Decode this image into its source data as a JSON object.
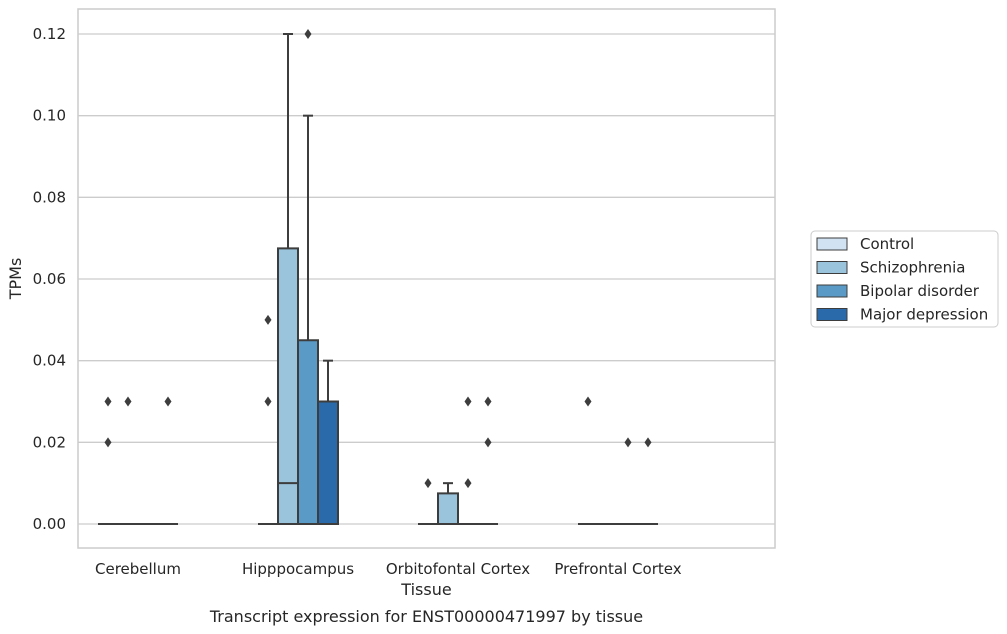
{
  "chart_data": {
    "type": "box",
    "xlabel": "Tissue",
    "ylabel": "TPMs",
    "caption": "Transcript expression for ENST00000471997 by tissue",
    "ylim": [
      -0.006,
      0.126
    ],
    "yticks": [
      0.0,
      0.02,
      0.04,
      0.06,
      0.08,
      0.1,
      0.12
    ],
    "ytick_labels": [
      "0.00",
      "0.02",
      "0.04",
      "0.06",
      "0.08",
      "0.10",
      "0.12"
    ],
    "grid": "horizontal",
    "legend_position": "right",
    "categories": [
      "Cerebellum",
      "Hipppocampus",
      "Orbitofontal Cortex",
      "Prefrontal Cortex"
    ],
    "series": [
      {
        "name": "Control",
        "color": "#d1e2f2",
        "boxes": [
          {
            "q1": 0,
            "median": 0,
            "q3": 0,
            "whislo": 0,
            "whishi": 0,
            "fliers": [
              0.02,
              0.03
            ]
          },
          {
            "q1": 0,
            "median": 0,
            "q3": 0,
            "whislo": 0,
            "whishi": 0,
            "fliers": [
              0.03,
              0.05
            ]
          },
          {
            "q1": 0,
            "median": 0,
            "q3": 0,
            "whislo": 0,
            "whishi": 0,
            "fliers": [
              0.01
            ]
          },
          {
            "q1": 0,
            "median": 0,
            "q3": 0,
            "whislo": 0,
            "whishi": 0,
            "fliers": [
              0.03
            ]
          }
        ]
      },
      {
        "name": "Schizophrenia",
        "color": "#9ac3dc",
        "boxes": [
          {
            "q1": 0,
            "median": 0,
            "q3": 0,
            "whislo": 0,
            "whishi": 0,
            "fliers": [
              0.03
            ]
          },
          {
            "q1": 0,
            "median": 0.01,
            "q3": 0.0675,
            "whislo": 0,
            "whishi": 0.12,
            "fliers": []
          },
          {
            "q1": 0,
            "median": 0,
            "q3": 0.0075,
            "whislo": 0,
            "whishi": 0.01,
            "fliers": []
          },
          {
            "q1": 0,
            "median": 0,
            "q3": 0,
            "whislo": 0,
            "whishi": 0,
            "fliers": []
          }
        ]
      },
      {
        "name": "Bipolar disorder",
        "color": "#5a9ac6",
        "boxes": [
          {
            "q1": 0,
            "median": 0,
            "q3": 0,
            "whislo": 0,
            "whishi": 0,
            "fliers": []
          },
          {
            "q1": 0,
            "median": 0,
            "q3": 0.045,
            "whislo": 0,
            "whishi": 0.1,
            "fliers": [
              0.12
            ]
          },
          {
            "q1": 0,
            "median": 0,
            "q3": 0,
            "whislo": 0,
            "whishi": 0,
            "fliers": [
              0.01,
              0.03
            ]
          },
          {
            "q1": 0,
            "median": 0,
            "q3": 0,
            "whislo": 0,
            "whishi": 0,
            "fliers": [
              0.02
            ]
          }
        ]
      },
      {
        "name": "Major depression",
        "color": "#2b6aaa",
        "boxes": [
          {
            "q1": 0,
            "median": 0,
            "q3": 0,
            "whislo": 0,
            "whishi": 0,
            "fliers": [
              0.03
            ]
          },
          {
            "q1": 0,
            "median": 0,
            "q3": 0.03,
            "whislo": 0,
            "whishi": 0.04,
            "fliers": []
          },
          {
            "q1": 0,
            "median": 0,
            "q3": 0,
            "whislo": 0,
            "whishi": 0,
            "fliers": [
              0.02,
              0.03
            ]
          },
          {
            "q1": 0,
            "median": 0,
            "q3": 0,
            "whislo": 0,
            "whishi": 0,
            "fliers": [
              0.02
            ]
          }
        ]
      }
    ]
  }
}
